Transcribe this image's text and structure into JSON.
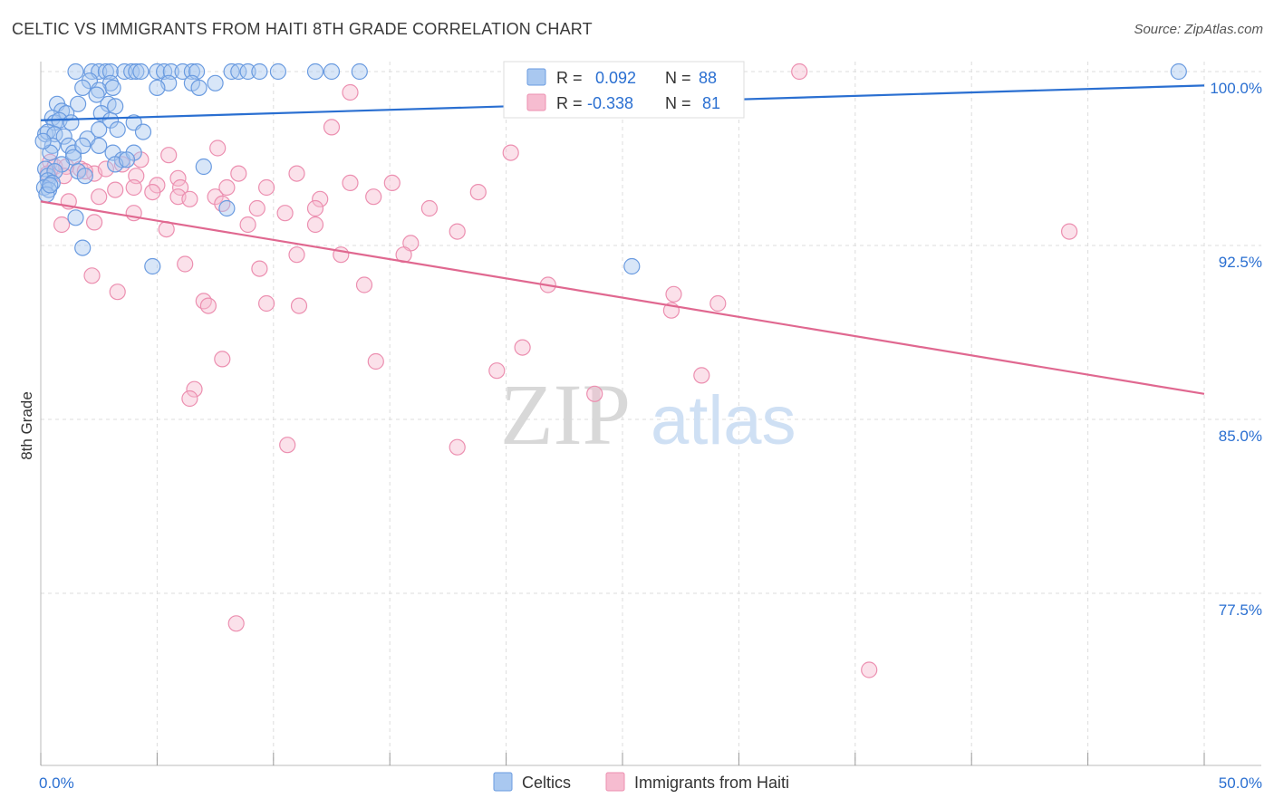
{
  "title": "CELTIC VS IMMIGRANTS FROM HAITI 8TH GRADE CORRELATION CHART",
  "source": "Source: ZipAtlas.com",
  "watermark": {
    "zip": "ZIP",
    "atlas": "atlas"
  },
  "legend_box": {
    "rows": [
      {
        "r_label": "R =",
        "r_value": "0.092",
        "n_label": "N =",
        "n_value": "88"
      },
      {
        "r_label": "R =",
        "r_value": "-0.338",
        "n_label": "N =",
        "n_value": "81"
      }
    ]
  },
  "colors": {
    "celtic_fill": "#a9c8f0",
    "celtic_stroke": "#6a9be0",
    "celtic_line": "#2a6fd1",
    "haiti_fill": "#f6bcd0",
    "haiti_stroke": "#ec8fb0",
    "haiti_line": "#e06890",
    "value_text": "#2a6fd1",
    "grid": "#dddddd"
  },
  "chart_data": {
    "type": "scatter",
    "title": "CELTIC VS IMMIGRANTS FROM HAITI 8TH GRADE CORRELATION CHART",
    "xlabel": "",
    "ylabel": "8th Grade",
    "xlim": [
      0,
      50
    ],
    "ylim": [
      70,
      100.8
    ],
    "x_tick_labels": [
      "0.0%",
      "50.0%"
    ],
    "y_ticks": [
      77.5,
      85.0,
      92.5,
      100.0
    ],
    "y_tick_labels": [
      "77.5%",
      "85.0%",
      "92.5%",
      "100.0%"
    ],
    "grid": true,
    "legend_position": "bottom-center",
    "series": [
      {
        "name": "Celtics",
        "color": "#6a9be0",
        "trend": {
          "x": [
            0,
            50
          ],
          "y": [
            97.9,
            99.4
          ]
        },
        "points": [
          [
            1.5,
            100
          ],
          [
            2.2,
            100
          ],
          [
            2.5,
            100
          ],
          [
            2.8,
            100
          ],
          [
            3.0,
            100
          ],
          [
            3.6,
            100
          ],
          [
            3.9,
            100
          ],
          [
            4.1,
            100
          ],
          [
            4.3,
            100
          ],
          [
            5.0,
            100
          ],
          [
            5.3,
            100
          ],
          [
            5.6,
            100
          ],
          [
            6.1,
            100
          ],
          [
            6.5,
            100
          ],
          [
            6.7,
            100
          ],
          [
            8.2,
            100
          ],
          [
            8.5,
            100
          ],
          [
            8.9,
            100
          ],
          [
            9.4,
            100
          ],
          [
            10.2,
            100
          ],
          [
            11.8,
            100
          ],
          [
            12.5,
            100
          ],
          [
            13.7,
            100
          ],
          [
            48.9,
            100
          ],
          [
            2.1,
            99.6
          ],
          [
            3.0,
            99.5
          ],
          [
            5.5,
            99.5
          ],
          [
            6.5,
            99.5
          ],
          [
            7.5,
            99.5
          ],
          [
            5.0,
            99.3
          ],
          [
            2.5,
            99.2
          ],
          [
            6.8,
            99.3
          ],
          [
            1.8,
            99.3
          ],
          [
            3.1,
            99.3
          ],
          [
            0.7,
            98.6
          ],
          [
            1.6,
            98.6
          ],
          [
            2.9,
            98.6
          ],
          [
            3.2,
            98.5
          ],
          [
            0.9,
            98.3
          ],
          [
            1.1,
            98.2
          ],
          [
            2.6,
            98.2
          ],
          [
            0.5,
            98.0
          ],
          [
            0.6,
            97.8
          ],
          [
            0.8,
            97.9
          ],
          [
            1.3,
            97.8
          ],
          [
            3.0,
            97.9
          ],
          [
            0.2,
            97.3
          ],
          [
            0.3,
            97.4
          ],
          [
            0.6,
            97.3
          ],
          [
            1.0,
            97.2
          ],
          [
            2.0,
            97.1
          ],
          [
            2.5,
            97.5
          ],
          [
            3.3,
            97.5
          ],
          [
            4.0,
            97.8
          ],
          [
            4.4,
            97.4
          ],
          [
            0.5,
            96.8
          ],
          [
            1.2,
            96.8
          ],
          [
            1.4,
            96.5
          ],
          [
            1.8,
            96.8
          ],
          [
            2.5,
            96.8
          ],
          [
            3.1,
            96.5
          ],
          [
            3.5,
            96.2
          ],
          [
            0.4,
            96.5
          ],
          [
            1.4,
            96.3
          ],
          [
            0.9,
            96.0
          ],
          [
            3.2,
            96.0
          ],
          [
            4.0,
            96.5
          ],
          [
            0.2,
            95.8
          ],
          [
            0.3,
            95.5
          ],
          [
            0.6,
            95.7
          ],
          [
            1.6,
            95.7
          ],
          [
            1.9,
            95.5
          ],
          [
            0.3,
            95.3
          ],
          [
            0.5,
            95.2
          ],
          [
            0.15,
            95.0
          ],
          [
            0.35,
            94.9
          ],
          [
            0.25,
            94.7
          ],
          [
            0.4,
            95.1
          ],
          [
            7.0,
            95.9
          ],
          [
            8.0,
            94.1
          ],
          [
            1.5,
            93.7
          ],
          [
            1.8,
            92.4
          ],
          [
            4.8,
            91.6
          ],
          [
            25.4,
            91.6
          ],
          [
            0.1,
            97.0
          ],
          [
            2.4,
            99.0
          ],
          [
            3.7,
            96.2
          ]
        ]
      },
      {
        "name": "Immigrants from Haiti",
        "color": "#ec8fb0",
        "trend": {
          "x": [
            0,
            50
          ],
          "y": [
            94.4,
            86.1
          ]
        },
        "points": [
          [
            32.6,
            100
          ],
          [
            13.3,
            99.1
          ],
          [
            12.5,
            97.6
          ],
          [
            20.2,
            96.5
          ],
          [
            7.6,
            96.7
          ],
          [
            5.5,
            96.4
          ],
          [
            4.3,
            96.2
          ],
          [
            0.4,
            96.1
          ],
          [
            0.6,
            95.9
          ],
          [
            1.1,
            95.9
          ],
          [
            1.7,
            95.8
          ],
          [
            2.3,
            95.6
          ],
          [
            2.8,
            95.8
          ],
          [
            3.5,
            96.0
          ],
          [
            0.3,
            95.6
          ],
          [
            1.0,
            95.5
          ],
          [
            4.1,
            95.5
          ],
          [
            5.9,
            95.4
          ],
          [
            8.5,
            95.6
          ],
          [
            11.0,
            95.6
          ],
          [
            4.0,
            95.0
          ],
          [
            5.0,
            95.1
          ],
          [
            6.0,
            95.0
          ],
          [
            7.5,
            94.6
          ],
          [
            8.0,
            95.0
          ],
          [
            9.7,
            95.0
          ],
          [
            12.0,
            94.5
          ],
          [
            13.3,
            95.2
          ],
          [
            15.1,
            95.2
          ],
          [
            18.8,
            94.8
          ],
          [
            1.2,
            94.4
          ],
          [
            2.5,
            94.6
          ],
          [
            3.2,
            94.9
          ],
          [
            4.8,
            94.8
          ],
          [
            5.9,
            94.6
          ],
          [
            6.4,
            94.5
          ],
          [
            7.8,
            94.3
          ],
          [
            9.3,
            94.1
          ],
          [
            10.5,
            93.9
          ],
          [
            11.8,
            94.1
          ],
          [
            14.3,
            94.6
          ],
          [
            16.7,
            94.1
          ],
          [
            0.9,
            93.4
          ],
          [
            2.3,
            93.5
          ],
          [
            4.0,
            93.9
          ],
          [
            5.4,
            93.2
          ],
          [
            8.9,
            93.4
          ],
          [
            11.8,
            93.4
          ],
          [
            17.9,
            93.1
          ],
          [
            15.9,
            92.6
          ],
          [
            11.0,
            92.1
          ],
          [
            12.9,
            92.1
          ],
          [
            15.6,
            92.1
          ],
          [
            9.4,
            91.5
          ],
          [
            44.2,
            93.1
          ],
          [
            6.2,
            91.7
          ],
          [
            2.2,
            91.2
          ],
          [
            3.3,
            90.5
          ],
          [
            13.9,
            90.8
          ],
          [
            21.8,
            90.8
          ],
          [
            27.2,
            90.4
          ],
          [
            7.0,
            90.1
          ],
          [
            7.2,
            89.9
          ],
          [
            9.7,
            90.0
          ],
          [
            11.1,
            89.9
          ],
          [
            27.1,
            89.7
          ],
          [
            29.1,
            90.0
          ],
          [
            20.7,
            88.1
          ],
          [
            7.8,
            87.6
          ],
          [
            14.4,
            87.5
          ],
          [
            19.6,
            87.1
          ],
          [
            28.4,
            86.9
          ],
          [
            6.6,
            86.3
          ],
          [
            6.4,
            85.9
          ],
          [
            23.8,
            86.1
          ],
          [
            10.6,
            83.9
          ],
          [
            17.9,
            83.8
          ],
          [
            8.4,
            76.2
          ],
          [
            35.6,
            74.2
          ],
          [
            1.9,
            95.7
          ]
        ]
      }
    ]
  },
  "bottom_legend": {
    "items": [
      {
        "label": "Celtics"
      },
      {
        "label": "Immigrants from Haiti"
      }
    ]
  }
}
